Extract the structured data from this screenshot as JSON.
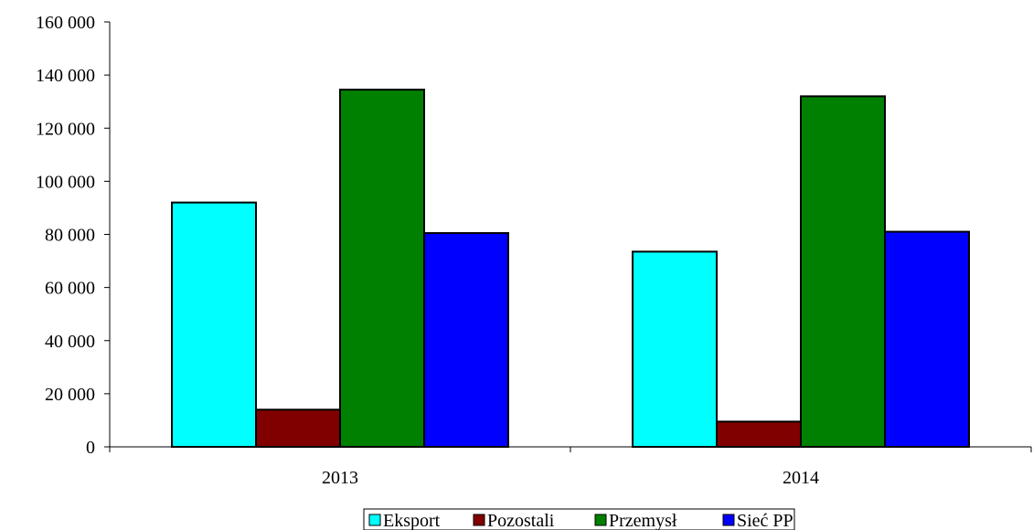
{
  "chart_data": {
    "type": "bar",
    "title": "",
    "xlabel": "",
    "ylabel": "",
    "categories": [
      "2013",
      "2014"
    ],
    "ylim": [
      0,
      160000
    ],
    "yticks": [
      0,
      20000,
      40000,
      60000,
      80000,
      100000,
      120000,
      140000,
      160000
    ],
    "ytick_labels": [
      "0",
      "20 000",
      "40 000",
      "60 000",
      "80 000",
      "100 000",
      "120 000",
      "140 000",
      "160 000"
    ],
    "grid": false,
    "legend_position": "bottom",
    "series": [
      {
        "name": "Eksport",
        "color": "#00ffff",
        "values": [
          92000,
          73500
        ]
      },
      {
        "name": "Pozostali",
        "color": "#800000",
        "values": [
          14000,
          9500
        ]
      },
      {
        "name": "Przemysł",
        "color": "#008000",
        "values": [
          134500,
          132000
        ]
      },
      {
        "name": "Sieć PP",
        "color": "#0000ff",
        "values": [
          80500,
          81000
        ]
      }
    ]
  }
}
